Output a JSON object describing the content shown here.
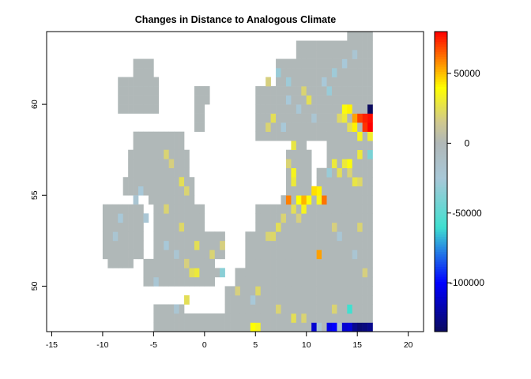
{
  "chart_data": {
    "type": "heatmap",
    "title": "Changes in Distance to Analogous Climate",
    "xlabel": "",
    "ylabel": "",
    "xlim": [
      -15.5,
      21.5
    ],
    "ylim": [
      47.5,
      64
    ],
    "x_ticks": [
      -15,
      -10,
      -5,
      0,
      5,
      10,
      15,
      20
    ],
    "y_ticks": [
      50,
      55,
      60
    ],
    "grid": false,
    "legend": "right",
    "cell_size": 0.5,
    "colorbar": {
      "min": -135000,
      "max": 80000,
      "ticks": [
        50000,
        0,
        -50000,
        -100000
      ],
      "tick_labels": [
        "50000",
        "0",
        "-50000",
        "-100000"
      ],
      "colors": [
        "#0b0b5e",
        "#0000ff",
        "#40e0d0",
        "#a8c8d8",
        "#b0b8b8",
        "#d0c890",
        "#ffff00",
        "#ff8000",
        "#ff0000"
      ],
      "stops": [
        -135000,
        -100000,
        -60000,
        -25000,
        0,
        15000,
        40000,
        60000,
        80000
      ]
    },
    "land_value": 0,
    "land_regions": [
      [
        -8.5,
        59.5,
        -4.5,
        61.5
      ],
      [
        -7,
        61.5,
        -5,
        62.5
      ],
      [
        -1,
        60,
        0.5,
        61
      ],
      [
        -1,
        58.5,
        0,
        60
      ],
      [
        -7,
        57.5,
        -2,
        58.5
      ],
      [
        -7.5,
        56,
        -1.5,
        57.5
      ],
      [
        -5.5,
        54.5,
        -1,
        56
      ],
      [
        -8,
        55,
        -5,
        56
      ],
      [
        -10,
        51.5,
        -6,
        54.5
      ],
      [
        -9.5,
        51,
        -7,
        52
      ],
      [
        -5,
        53,
        0,
        54.5
      ],
      [
        -5,
        51.5,
        2,
        53
      ],
      [
        -6,
        50,
        1,
        51.5
      ],
      [
        0,
        50.5,
        2,
        51
      ],
      [
        -5,
        48,
        -2,
        49
      ],
      [
        -5,
        47.5,
        16.5,
        48.5
      ],
      [
        2,
        48.5,
        16.5,
        50
      ],
      [
        3,
        50,
        16.5,
        51
      ],
      [
        4,
        51,
        16.5,
        53
      ],
      [
        5,
        53,
        16.5,
        54.5
      ],
      [
        7.5,
        54.5,
        16.5,
        55
      ],
      [
        8,
        55,
        10.5,
        57.5
      ],
      [
        8.5,
        57.5,
        10,
        58
      ],
      [
        11,
        55,
        16.5,
        56.5
      ],
      [
        12,
        56.5,
        16.5,
        58.5
      ],
      [
        5,
        58,
        12,
        58.5
      ],
      [
        5,
        58.5,
        16.5,
        61
      ],
      [
        7,
        61,
        16.5,
        62.5
      ],
      [
        9,
        62.5,
        16.5,
        63.5
      ],
      [
        14,
        63.5,
        16.5,
        64
      ]
    ],
    "hotspots": [
      [
        16,
        59.5,
        -135000
      ],
      [
        15.5,
        59,
        75000
      ],
      [
        16,
        59,
        78000
      ],
      [
        15,
        59,
        70000
      ],
      [
        15.5,
        58.5,
        72000
      ],
      [
        16,
        58.5,
        80000
      ],
      [
        14.5,
        59,
        55000
      ],
      [
        14,
        59.5,
        42000
      ],
      [
        13.5,
        59.5,
        38000
      ],
      [
        13.5,
        59,
        30000
      ],
      [
        14,
        58.5,
        25000
      ],
      [
        14.5,
        58.5,
        42000
      ],
      [
        15,
        58,
        35000
      ],
      [
        16,
        58,
        32000
      ],
      [
        16,
        57,
        -40000
      ],
      [
        15,
        57,
        30000
      ],
      [
        13.5,
        56.5,
        30000
      ],
      [
        14,
        56.5,
        38000
      ],
      [
        12.5,
        56.5,
        30000
      ],
      [
        12,
        56,
        -30000
      ],
      [
        13,
        56,
        25000
      ],
      [
        14,
        56,
        20000
      ],
      [
        14.5,
        55.5,
        28000
      ],
      [
        15,
        55.5,
        22000
      ],
      [
        10.5,
        55,
        45000
      ],
      [
        11,
        55,
        42000
      ],
      [
        11,
        54.5,
        35000
      ],
      [
        11.5,
        54.5,
        62000
      ],
      [
        8,
        54.5,
        60000
      ],
      [
        9,
        54.5,
        40000
      ],
      [
        9.5,
        54.5,
        52000
      ],
      [
        10,
        54.5,
        38000
      ],
      [
        8.5,
        54,
        25000
      ],
      [
        9.5,
        54,
        35000
      ],
      [
        7,
        53,
        25000
      ],
      [
        7.5,
        53.5,
        20000
      ],
      [
        6.5,
        52.5,
        22000
      ],
      [
        6,
        52.5,
        20000
      ],
      [
        9,
        53.5,
        18000
      ],
      [
        11,
        51.5,
        55000
      ],
      [
        8.5,
        56,
        35000
      ],
      [
        8.5,
        55.5,
        30000
      ],
      [
        8.5,
        57.5,
        28000
      ],
      [
        8,
        56.5,
        20000
      ],
      [
        13,
        59,
        22000
      ],
      [
        10,
        60,
        25000
      ],
      [
        9.5,
        60.5,
        20000
      ],
      [
        6,
        61,
        18000
      ],
      [
        6.5,
        59,
        25000
      ],
      [
        6,
        58.5,
        20000
      ],
      [
        12,
        60.5,
        -30000
      ],
      [
        11.5,
        61,
        -25000
      ],
      [
        12.5,
        61.5,
        -28000
      ],
      [
        13.5,
        62,
        -25000
      ],
      [
        14.5,
        62.5,
        -20000
      ],
      [
        7,
        61.5,
        -30000
      ],
      [
        8,
        61,
        -28000
      ],
      [
        8,
        60,
        -25000
      ],
      [
        9,
        59.5,
        -22000
      ],
      [
        10.5,
        59,
        -20000
      ],
      [
        7.5,
        58.5,
        -25000
      ],
      [
        -2.5,
        55.5,
        25000
      ],
      [
        -2,
        55,
        20000
      ],
      [
        -3.5,
        56.5,
        18000
      ],
      [
        -4,
        57,
        20000
      ],
      [
        -6.5,
        55,
        -25000
      ],
      [
        -7,
        54.5,
        -20000
      ],
      [
        -6,
        53.5,
        -22000
      ],
      [
        -8.5,
        53.5,
        -25000
      ],
      [
        -9,
        52.5,
        -20000
      ],
      [
        -4,
        54,
        20000
      ],
      [
        -2.5,
        53,
        22000
      ],
      [
        -1,
        52,
        25000
      ],
      [
        0.5,
        51.5,
        20000
      ],
      [
        1.5,
        52,
        18000
      ],
      [
        -1,
        50.5,
        30000
      ],
      [
        -1.5,
        50.5,
        25000
      ],
      [
        -2,
        51,
        18000
      ],
      [
        -3,
        51.5,
        -20000
      ],
      [
        -4,
        52,
        -25000
      ],
      [
        -5,
        50,
        -22000
      ],
      [
        1.5,
        50.5,
        -35000
      ],
      [
        -2,
        49,
        25000
      ],
      [
        -3,
        48.5,
        -20000
      ],
      [
        3,
        49.5,
        18000
      ],
      [
        5,
        49.5,
        22000
      ],
      [
        4.5,
        49,
        -25000
      ],
      [
        7,
        48.5,
        20000
      ],
      [
        8.5,
        48,
        25000
      ],
      [
        9.5,
        48,
        20000
      ],
      [
        4.5,
        47.5,
        40000
      ],
      [
        5,
        47.5,
        35000
      ],
      [
        12.5,
        48.5,
        20000
      ],
      [
        14,
        48.5,
        -60000
      ],
      [
        15.5,
        50.5,
        18000
      ],
      [
        14.5,
        51.5,
        -20000
      ],
      [
        12.5,
        53,
        18000
      ],
      [
        13,
        52.5,
        -22000
      ],
      [
        15,
        53,
        20000
      ],
      [
        10.5,
        47.5,
        -110000
      ],
      [
        12,
        47.5,
        -105000
      ],
      [
        12.5,
        47.5,
        -100000
      ],
      [
        13.5,
        47.5,
        -110000
      ],
      [
        14,
        47.5,
        -108000
      ],
      [
        14.5,
        47.5,
        -125000
      ],
      [
        15,
        47.5,
        -130000
      ],
      [
        15.5,
        47.5,
        -128000
      ],
      [
        16,
        47.5,
        -125000
      ],
      [
        11,
        47.5,
        -20000
      ],
      [
        13,
        47.5,
        -15000
      ]
    ]
  }
}
